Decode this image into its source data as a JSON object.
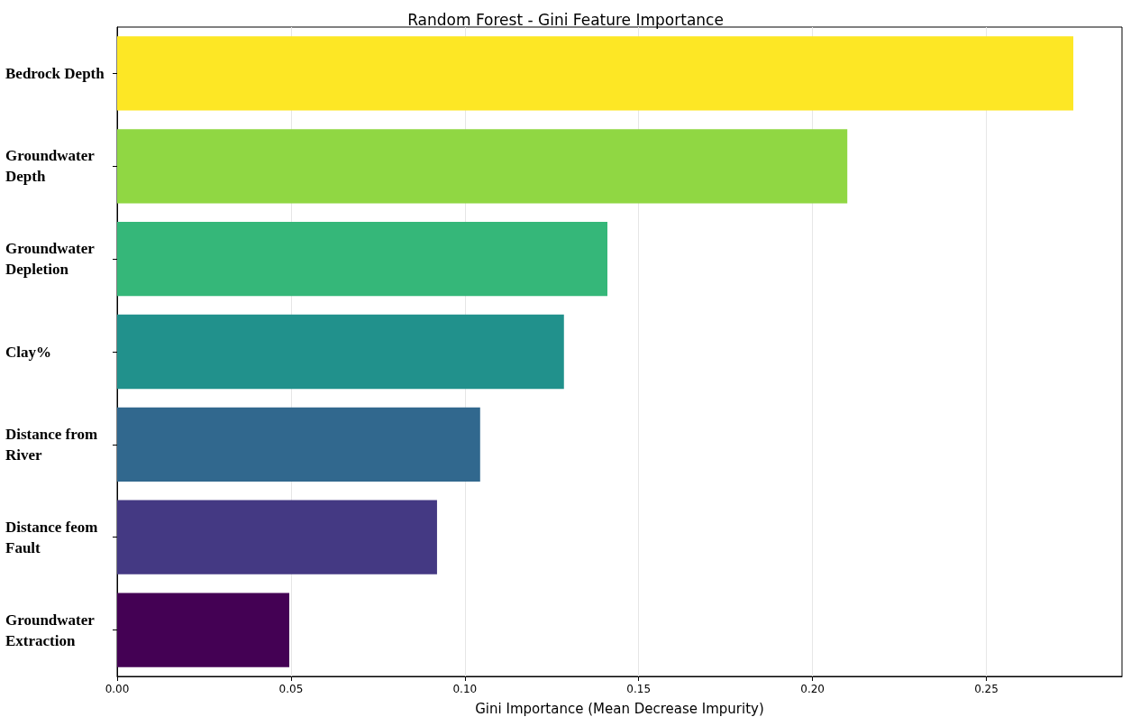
{
  "chart_data": {
    "type": "bar",
    "orientation": "horizontal",
    "title": "Random Forest - Gini Feature Importance",
    "xlabel": "Gini Importance (Mean Decrease Impurity)",
    "categories": [
      "Bedrock Depth",
      "Groundwater Depth",
      "Groundwater Depletion",
      "Clay%",
      "Distance from River",
      "Distance feom Fault",
      "Groundwater Extraction"
    ],
    "values": [
      0.275,
      0.21,
      0.141,
      0.1285,
      0.1044,
      0.092,
      0.0495
    ],
    "colors": [
      "#fde725",
      "#90d743",
      "#35b779",
      "#21918c",
      "#31688e",
      "#443983",
      "#440154"
    ],
    "xlim": [
      0,
      0.289
    ],
    "xticks": [
      {
        "value": 0,
        "label": "0.00"
      },
      {
        "value": 0.05,
        "label": "0.05"
      },
      {
        "value": 0.1,
        "label": "0.10"
      },
      {
        "value": 0.15,
        "label": "0.15"
      },
      {
        "value": 0.2,
        "label": "0.20"
      },
      {
        "value": 0.25,
        "label": "0.25"
      }
    ],
    "grid": "x"
  }
}
